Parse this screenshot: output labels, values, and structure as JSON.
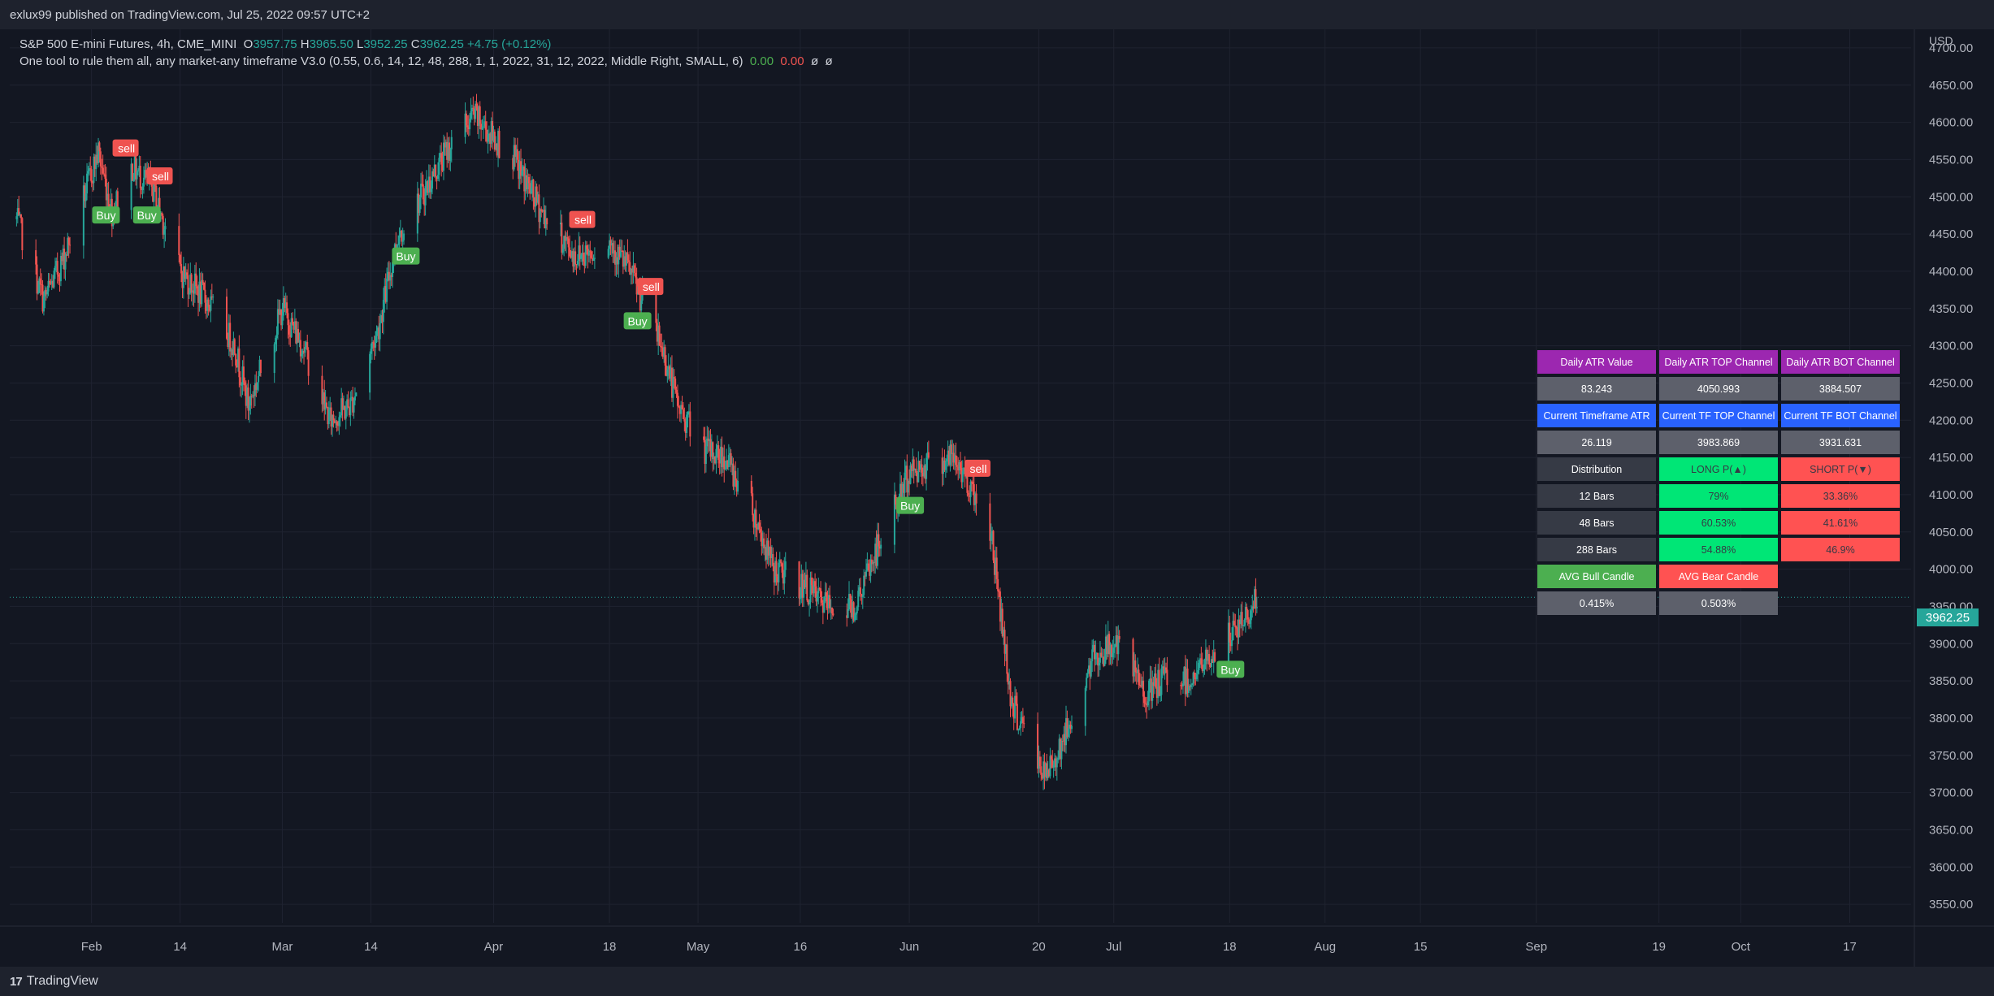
{
  "header": {
    "publisher": "exlux99 published on TradingView.com, Jul 25, 2022 09:57 UTC+2"
  },
  "legend": {
    "line1": {
      "symbol": "S&P 500 E-mini Futures, 4h, CME_MINI",
      "o_label": "O",
      "o_value": "3957.75",
      "h_label": "H",
      "h_value": "3965.50",
      "l_label": "L",
      "l_value": "3952.25",
      "c_label": "C",
      "c_value": "3962.25",
      "change": "+4.75 (+0.12%)"
    },
    "line2": {
      "indicator": "One tool to rule them all, any market-any timeframe V3.0 (0.55, 0.6, 14, 12, 48, 288, 1, 1, 2022, 31, 12, 2022, Middle Right, SMALL, 6)",
      "v1": "0.00",
      "v2": "0.00",
      "v3": "ø",
      "v4": "ø"
    }
  },
  "currency": "USD",
  "last_price": "3962.25",
  "footer": {
    "brand": "TradingView",
    "mark": "17"
  },
  "colors": {
    "up": "#26a69a",
    "down": "#ef5350",
    "buy": "#4caf50",
    "sell": "#ef5350",
    "background": "#131722"
  },
  "atr_table": {
    "rows": [
      [
        "Daily ATR Value",
        "Daily ATR TOP Channel",
        "Daily ATR BOT Channel"
      ],
      [
        "83.243",
        "4050.993",
        "3884.507"
      ],
      [
        "Current Timeframe ATR",
        "Current TF TOP Channel",
        "Current TF BOT Channel"
      ],
      [
        "26.119",
        "3983.869",
        "3931.631"
      ],
      [
        "Distribution",
        "LONG P(▲)",
        "SHORT P(▼)"
      ],
      [
        "12 Bars",
        "79%",
        "33.36%"
      ],
      [
        "48 Bars",
        "60.53%",
        "41.61%"
      ],
      [
        "288 Bars",
        "54.88%",
        "46.9%"
      ],
      [
        "AVG Bull Candle",
        "AVG Bear Candle",
        ""
      ],
      [
        "0.415%",
        "0.503%",
        ""
      ]
    ]
  },
  "chart_data": {
    "type": "line",
    "subtype": "candlestick",
    "symbol": "S&P 500 E-mini Futures",
    "interval": "4h",
    "ylim": [
      3525,
      4725
    ],
    "y_ticks": [
      3550,
      3600,
      3650,
      3700,
      3750,
      3800,
      3850,
      3900,
      3950,
      4000,
      4050,
      4100,
      4150,
      4200,
      4250,
      4300,
      4350,
      4400,
      4450,
      4500,
      4550,
      4600,
      4650,
      4700
    ],
    "y_tick_labels": [
      "3550.00",
      "3600.00",
      "3650.00",
      "3700.00",
      "3750.00",
      "3800.00",
      "3850.00",
      "3900.00",
      "3950.00",
      "4000.00",
      "4050.00",
      "4100.00",
      "4150.00",
      "4200.00",
      "4250.00",
      "4300.00",
      "4350.00",
      "4400.00",
      "4450.00",
      "4500.00",
      "4550.00",
      "4600.00",
      "4650.00",
      "4700.00"
    ],
    "x_ticks": [
      "2022-02-01",
      "2022-02-14",
      "2022-03-01",
      "2022-03-14",
      "2022-04-01",
      "2022-04-18",
      "2022-05-01",
      "2022-05-16",
      "2022-06-01",
      "2022-06-20",
      "2022-07-01",
      "2022-07-18",
      "2022-08-01",
      "2022-08-15",
      "2022-09-01",
      "2022-09-19",
      "2022-10-01",
      "2022-10-17"
    ],
    "x_tick_labels": [
      "Feb",
      "14",
      "Mar",
      "14",
      "Apr",
      "18",
      "May",
      "16",
      "Jun",
      "20",
      "Jul",
      "18",
      "Aug",
      "15",
      "Sep",
      "19",
      "Oct",
      "17"
    ],
    "grid": true,
    "x": [
      "2022-01-21",
      "2022-01-25",
      "2022-01-28",
      "2022-02-02",
      "2022-02-04",
      "2022-02-07",
      "2022-02-10",
      "2022-02-14",
      "2022-02-18",
      "2022-02-22",
      "2022-02-24",
      "2022-03-01",
      "2022-03-04",
      "2022-03-08",
      "2022-03-11",
      "2022-03-15",
      "2022-03-18",
      "2022-03-22",
      "2022-03-25",
      "2022-03-29",
      "2022-04-04",
      "2022-04-08",
      "2022-04-13",
      "2022-04-18",
      "2022-04-21",
      "2022-04-26",
      "2022-04-28",
      "2022-05-02",
      "2022-05-05",
      "2022-05-09",
      "2022-05-12",
      "2022-05-16",
      "2022-05-20",
      "2022-05-24",
      "2022-05-27",
      "2022-06-01",
      "2022-06-03",
      "2022-06-07",
      "2022-06-09",
      "2022-06-13",
      "2022-06-16",
      "2022-06-21",
      "2022-06-24",
      "2022-06-28",
      "2022-07-01",
      "2022-07-06",
      "2022-07-09",
      "2022-07-12",
      "2022-07-15",
      "2022-07-20",
      "2022-07-22"
    ],
    "series": [
      {
        "values": [
          4470,
          4360,
          4420,
          4560,
          4480,
          4540,
          4510,
          4400,
          4360,
          4300,
          4220,
          4350,
          4300,
          4200,
          4220,
          4320,
          4450,
          4510,
          4560,
          4610,
          4550,
          4480,
          4420,
          4440,
          4400,
          4290,
          4220,
          4160,
          4150,
          4080,
          4000,
          3980,
          3950,
          3950,
          4020,
          4130,
          4140,
          4150,
          4130,
          4050,
          3820,
          3720,
          3780,
          3880,
          3900,
          3830,
          3860,
          3850,
          3880,
          3930,
          3962
        ]
      }
    ],
    "signals": [
      {
        "label": "Buy",
        "x": "2022-02-03"
      },
      {
        "label": "sell",
        "x": "2022-02-06"
      },
      {
        "label": "Buy",
        "x": "2022-02-09"
      },
      {
        "label": "sell",
        "x": "2022-02-11"
      },
      {
        "label": "sell",
        "x": "2022-04-14"
      },
      {
        "label": "sell",
        "x": "2022-04-24"
      },
      {
        "label": "Buy",
        "x": "2022-04-22"
      },
      {
        "label": "Buy",
        "x": "2022-03-19"
      },
      {
        "label": "Buy",
        "x": "2022-06-01"
      },
      {
        "label": "sell",
        "x": "2022-06-11"
      },
      {
        "label": "Buy",
        "x": "2022-07-18"
      }
    ]
  }
}
